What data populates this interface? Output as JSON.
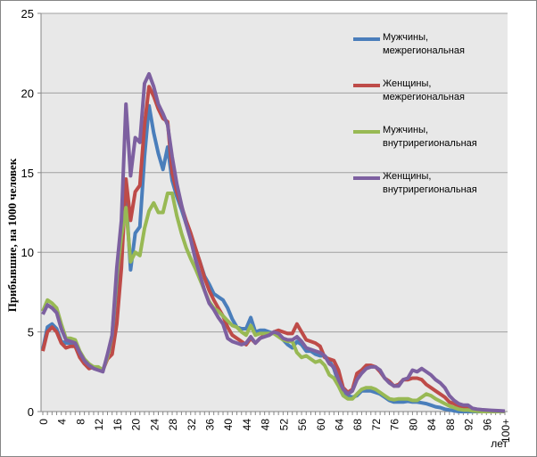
{
  "chart_data": {
    "type": "line",
    "title": "",
    "xlabel": "лет",
    "ylabel": "Прибывшие, на 1000 человек",
    "ylim": [
      0,
      25
    ],
    "yticks": [
      0,
      5,
      10,
      15,
      20,
      25
    ],
    "grid": true,
    "legend_placement": "top-right",
    "x_tick_labels": [
      "0",
      "4",
      "8",
      "12",
      "16",
      "20",
      "24",
      "28",
      "32",
      "36",
      "40",
      "44",
      "48",
      "52",
      "56",
      "60",
      "64",
      "68",
      "72",
      "76",
      "80",
      "84",
      "88",
      "92",
      "96",
      "100+"
    ],
    "x": [
      "0",
      "1",
      "2",
      "3",
      "4",
      "5",
      "6",
      "7",
      "8",
      "9",
      "10",
      "11",
      "12",
      "13",
      "14",
      "15",
      "16",
      "17",
      "18",
      "19",
      "20",
      "21",
      "22",
      "23",
      "24",
      "25",
      "26",
      "27",
      "28",
      "29",
      "30",
      "31",
      "32",
      "33",
      "34",
      "35",
      "36",
      "37",
      "38",
      "39",
      "40",
      "41",
      "42",
      "43",
      "44",
      "45",
      "46",
      "47",
      "48",
      "49",
      "50",
      "51",
      "52",
      "53",
      "54",
      "55",
      "56",
      "57",
      "58",
      "59",
      "60",
      "61",
      "62",
      "63",
      "64",
      "65",
      "66",
      "67",
      "68",
      "69",
      "70",
      "71",
      "72",
      "73",
      "74",
      "75",
      "76",
      "77",
      "78",
      "79",
      "80",
      "81",
      "82",
      "83",
      "84",
      "85",
      "86",
      "87",
      "88",
      "89",
      "90",
      "91",
      "92",
      "93",
      "94",
      "95",
      "96",
      "97",
      "98",
      "99",
      "100+"
    ],
    "series": [
      {
        "name": "Мужчины, межрегиональная",
        "color": "#4a7ebb",
        "values": [
          3.9,
          5.3,
          5.5,
          5.2,
          4.4,
          4.3,
          4.3,
          4.3,
          3.6,
          3.2,
          2.9,
          2.8,
          2.7,
          2.6,
          3.4,
          4.6,
          8,
          11.5,
          13.5,
          8.9,
          11.2,
          11.6,
          16,
          19.2,
          17.5,
          16.2,
          15.2,
          16.6,
          14.5,
          13.5,
          12.7,
          11.8,
          11,
          10.2,
          9.4,
          8.5,
          8,
          7.4,
          7.2,
          7,
          6.5,
          5.8,
          5.3,
          5.2,
          5.2,
          5.9,
          5,
          5.1,
          5.1,
          5,
          4.9,
          4.8,
          4.5,
          4.2,
          4,
          4.4,
          4.2,
          3.8,
          3.8,
          3.6,
          3.5,
          3.5,
          3.2,
          2.7,
          1.8,
          1.3,
          1,
          0.9,
          1,
          1.3,
          1.3,
          1.3,
          1.2,
          1.1,
          0.9,
          0.7,
          0.6,
          0.6,
          0.6,
          0.65,
          0.6,
          0.6,
          0.55,
          0.5,
          0.4,
          0.3,
          0.25,
          0.15,
          0.1,
          0.05,
          0,
          0,
          0,
          0,
          0,
          0,
          0,
          0,
          0,
          0,
          0
        ]
      },
      {
        "name": "Женщины, межрегиональная",
        "color": "#be4b48",
        "values": [
          3.8,
          5,
          5.3,
          5,
          4.3,
          4,
          4.1,
          4.1,
          3.4,
          3,
          2.7,
          2.8,
          2.7,
          2.6,
          3.3,
          3.6,
          5.5,
          9,
          14.6,
          12,
          13.8,
          14.2,
          18,
          20.4,
          19.8,
          19,
          18.4,
          18.2,
          15,
          13.8,
          12.9,
          12,
          11.2,
          10.3,
          9.4,
          8.4,
          7.6,
          7,
          6.5,
          6,
          5.3,
          4.8,
          4.6,
          4.4,
          4.2,
          4.6,
          4.3,
          4.6,
          4.8,
          4.8,
          5,
          5.1,
          5,
          4.9,
          4.9,
          5.5,
          5,
          4.5,
          4.4,
          4.3,
          4.1,
          3.4,
          3.3,
          3.2,
          2.6,
          1.5,
          1.2,
          1.4,
          2.4,
          2.6,
          2.9,
          2.9,
          2.8,
          2.5,
          2.1,
          1.9,
          1.6,
          1.7,
          2,
          2,
          2.1,
          2.1,
          2,
          1.7,
          1.5,
          1.3,
          1.1,
          0.9,
          0.6,
          0.5,
          0.35,
          0.3,
          0.2,
          0.15,
          0.1,
          0.1,
          0.05,
          0.03,
          0.02,
          0.01,
          0
        ]
      },
      {
        "name": "Мужчины, внутрирегиональная",
        "color": "#98b954",
        "values": [
          6.3,
          7,
          6.8,
          6.5,
          5.5,
          4.6,
          4.6,
          4.5,
          3.8,
          3.3,
          3,
          2.8,
          2.8,
          2.6,
          3.4,
          4.8,
          8.5,
          11,
          12.8,
          9.4,
          10,
          9.8,
          11.5,
          12.6,
          13.1,
          12.5,
          12.5,
          13.7,
          13.7,
          12.3,
          11.2,
          10.3,
          9.6,
          9,
          8.3,
          7.6,
          6.9,
          6.5,
          6.3,
          6,
          5.7,
          5.4,
          5.3,
          5,
          4.8,
          5.4,
          4.8,
          4.9,
          4.9,
          4.9,
          4.9,
          4.7,
          4.5,
          4.4,
          4.4,
          3.7,
          3.4,
          3.5,
          3.3,
          3.1,
          3.2,
          2.9,
          2.3,
          2.1,
          1.6,
          1,
          0.8,
          0.8,
          1.1,
          1.4,
          1.5,
          1.5,
          1.4,
          1.2,
          1,
          0.8,
          0.75,
          0.8,
          0.8,
          0.8,
          0.7,
          0.7,
          0.9,
          1.1,
          1,
          0.8,
          0.65,
          0.5,
          0.35,
          0.25,
          0.15,
          0.1,
          0.1,
          0.05,
          0.02,
          0,
          0,
          0,
          0,
          0,
          0
        ]
      },
      {
        "name": "Женщины, внутрирегиональная",
        "color": "#7d60a0",
        "values": [
          6.1,
          6.7,
          6.5,
          6.2,
          5.2,
          4.5,
          4.4,
          4.3,
          3.7,
          3.2,
          2.9,
          2.7,
          2.6,
          2.5,
          3.6,
          4.8,
          9,
          12,
          19.3,
          14.8,
          17.2,
          16.9,
          20.6,
          21.2,
          20.4,
          19.3,
          18.7,
          18,
          16,
          14.3,
          13,
          11.8,
          10.8,
          9.6,
          8.6,
          7.6,
          6.8,
          6.4,
          5.9,
          5.5,
          4.6,
          4.4,
          4.3,
          4.2,
          4.3,
          4.7,
          4.3,
          4.6,
          4.7,
          4.8,
          5,
          4.9,
          4.6,
          4.5,
          4.5,
          4.7,
          4.4,
          4,
          3.9,
          3.8,
          3.7,
          3.5,
          3,
          2.8,
          2,
          1.4,
          1.1,
          1.3,
          2,
          2.4,
          2.7,
          2.8,
          2.8,
          2.6,
          2.1,
          1.8,
          1.6,
          1.6,
          2,
          2.1,
          2.6,
          2.5,
          2.7,
          2.5,
          2.3,
          2,
          1.8,
          1.5,
          1,
          0.7,
          0.5,
          0.4,
          0.4,
          0.2,
          0.15,
          0.12,
          0.1,
          0.08,
          0.06,
          0.05,
          0.03
        ]
      }
    ]
  }
}
